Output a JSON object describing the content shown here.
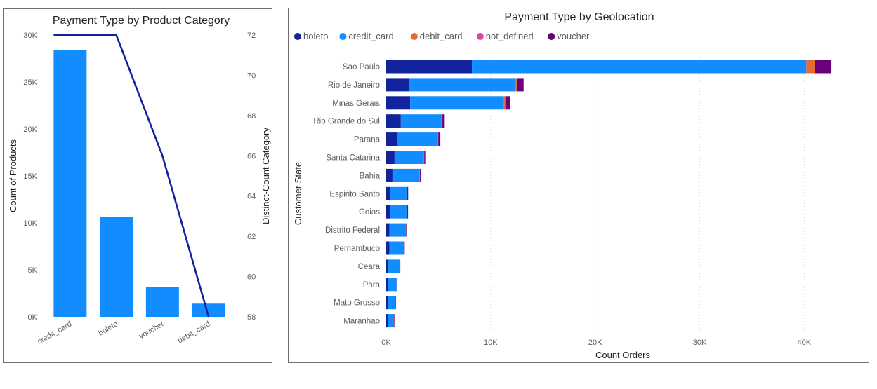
{
  "colors": {
    "bar": "#118DFF",
    "line": "#12239E",
    "boleto": "#12239E",
    "credit_card": "#118DFF",
    "debit_card": "#E66C37",
    "not_defined": "#E044A7",
    "voucher": "#6B007B"
  },
  "chart_data": [
    {
      "type": "bar",
      "combo": "bar+line",
      "title": "Payment Type by Product Category",
      "categories": [
        "credit_card",
        "boleto",
        "voucher",
        "debit_card"
      ],
      "series": [
        {
          "name": "Count of Products",
          "axis": "left",
          "type": "bar",
          "values": [
            28400,
            10600,
            3200,
            1400
          ]
        },
        {
          "name": "Distinct-Count Category",
          "axis": "right",
          "type": "line",
          "values": [
            72,
            72,
            66,
            58
          ]
        }
      ],
      "ylabel": "Count of Products",
      "y2label": "Distinct-Count Category",
      "xlabel": "",
      "ylim": [
        0,
        30000
      ],
      "y2lim": [
        58,
        72
      ],
      "yticks": [
        "0K",
        "5K",
        "10K",
        "15K",
        "20K",
        "25K",
        "30K"
      ],
      "y2ticks": [
        "58",
        "60",
        "62",
        "64",
        "66",
        "68",
        "70",
        "72"
      ],
      "grid": false
    },
    {
      "type": "bar",
      "orientation": "horizontal",
      "stacked": true,
      "title": "Payment Type by Geolocation",
      "legend_position": "top-left",
      "categories": [
        "Sao Paulo",
        "Rio de Janeiro",
        "Minas Gerais",
        "Rio Grande do Sul",
        "Parana",
        "Santa Catarina",
        "Bahia",
        "Espirito Santo",
        "Goias",
        "Distrito Federal",
        "Pernambuco",
        "Ceara",
        "Para",
        "Mato Grosso",
        "Maranhao"
      ],
      "series": [
        {
          "name": "boleto",
          "values": [
            8200,
            2200,
            2300,
            1400,
            1100,
            800,
            600,
            400,
            400,
            300,
            300,
            200,
            200,
            200,
            150
          ]
        },
        {
          "name": "credit_card",
          "values": [
            32000,
            10100,
            8900,
            3900,
            3800,
            2800,
            2600,
            1600,
            1600,
            1600,
            1400,
            1100,
            800,
            700,
            600
          ]
        },
        {
          "name": "debit_card",
          "values": [
            800,
            250,
            200,
            80,
            80,
            40,
            30,
            20,
            20,
            20,
            20,
            10,
            10,
            10,
            10
          ]
        },
        {
          "name": "not_defined",
          "values": [
            0,
            0,
            0,
            0,
            0,
            0,
            0,
            0,
            0,
            0,
            0,
            0,
            0,
            0,
            0
          ]
        },
        {
          "name": "voucher",
          "values": [
            1600,
            600,
            450,
            220,
            200,
            100,
            100,
            80,
            70,
            70,
            50,
            40,
            20,
            20,
            10
          ]
        }
      ],
      "xlabel": "Count Orders",
      "ylabel": "Customer State",
      "xlim": [
        0,
        43000
      ],
      "xticks": [
        "0K",
        "10K",
        "20K",
        "30K",
        "40K"
      ],
      "xtick_values": [
        0,
        10000,
        20000,
        30000,
        40000
      ],
      "grid": true
    }
  ]
}
